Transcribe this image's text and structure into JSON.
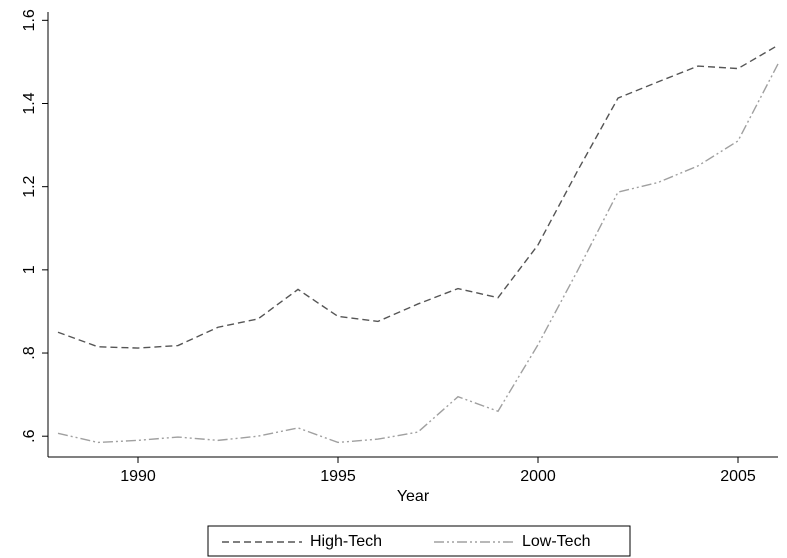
{
  "chart_data": {
    "type": "line",
    "x_label": "Year",
    "x": [
      1988,
      1989,
      1990,
      1991,
      1992,
      1993,
      1994,
      1995,
      1996,
      1997,
      1998,
      1999,
      2000,
      2001,
      2002,
      2003,
      2004,
      2005,
      2006
    ],
    "series": [
      {
        "name": "High-Tech",
        "color": "#555555",
        "dash": "7 4",
        "values": [
          0.85,
          0.815,
          0.812,
          0.818,
          0.862,
          0.882,
          0.953,
          0.888,
          0.876,
          0.918,
          0.955,
          0.933,
          1.06,
          1.24,
          1.413,
          1.452,
          1.49,
          1.484,
          1.54
        ]
      },
      {
        "name": "Low-Tech",
        "color": "#a0a0a0",
        "dash": "10 3 2 3 2 3",
        "values": [
          0.607,
          0.585,
          0.59,
          0.598,
          0.59,
          0.6,
          0.62,
          0.585,
          0.593,
          0.61,
          0.695,
          0.66,
          0.82,
          1.0,
          1.187,
          1.21,
          1.25,
          1.31,
          1.495
        ]
      }
    ],
    "xlim": [
      1987.75,
      2006
    ],
    "xticks": [
      1990,
      1995,
      2000,
      2005
    ],
    "ylim": [
      0.55,
      1.62
    ],
    "yticks": [
      {
        "value": 0.6,
        "label": ".6"
      },
      {
        "value": 0.8,
        "label": ".8"
      },
      1,
      1.2,
      1.4,
      1.6
    ],
    "grid": false,
    "legend": "bottom"
  }
}
